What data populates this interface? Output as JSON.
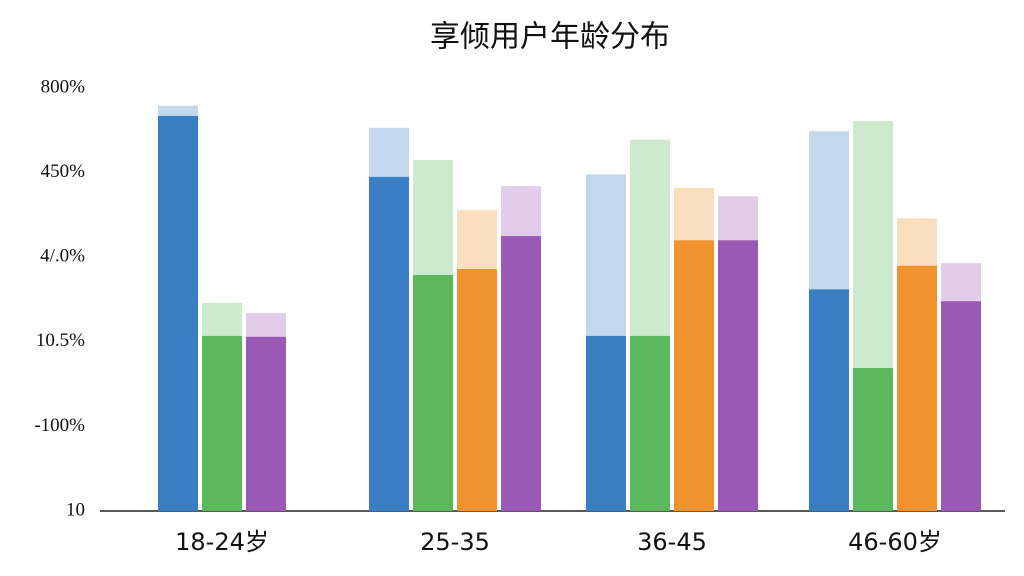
{
  "chart_data": {
    "type": "bar",
    "title": "享倾用户年龄分布",
    "categories": [
      "18-24岁",
      "25-35",
      "36-45",
      "46-60岁"
    ],
    "ylim": [
      0,
      5
    ],
    "yticks": [
      {
        "value": 0,
        "label": "10"
      },
      {
        "value": 1,
        "label": "-100%"
      },
      {
        "value": 2,
        "label": "10.5%"
      },
      {
        "value": 3,
        "label": "4/.0%"
      },
      {
        "value": 4,
        "label": "450%"
      },
      {
        "value": 5,
        "label": "800%"
      }
    ],
    "grid": false,
    "series": [
      {
        "color": "#3a7fc4",
        "values": [
          4.67,
          3.95,
          2.07,
          2.62
        ],
        "upper": [
          4.79,
          4.53,
          3.98,
          4.49
        ]
      },
      {
        "color": "#5cb85c",
        "values": [
          2.07,
          2.79,
          2.07,
          1.69
        ],
        "upper": [
          2.46,
          4.15,
          4.39,
          4.61
        ]
      },
      {
        "color": "#f0922e",
        "values": [
          null,
          2.86,
          3.2,
          2.9
        ],
        "upper": [
          null,
          3.56,
          3.82,
          3.46
        ]
      },
      {
        "color": "#9b59b6",
        "values": [
          2.06,
          3.25,
          3.2,
          2.48
        ],
        "upper": [
          2.34,
          3.84,
          3.72,
          2.93
        ]
      }
    ]
  }
}
